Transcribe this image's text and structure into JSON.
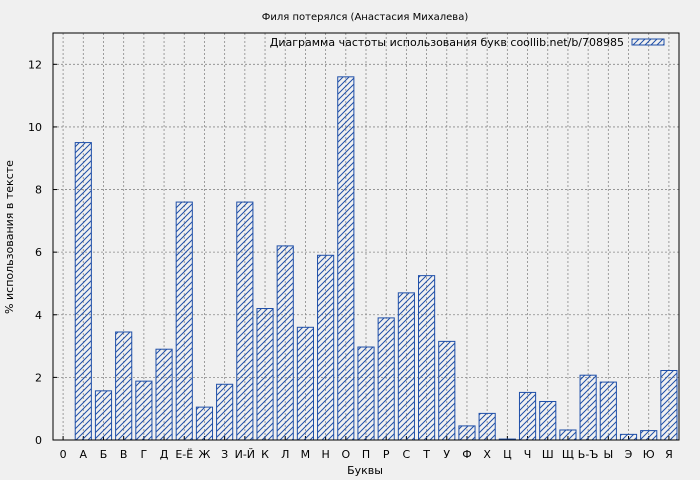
{
  "chart_data": {
    "type": "bar",
    "title": "Филя потерялся (Анастасия Михалева)",
    "xlabel": "Буквы",
    "ylabel": "% использования в тексте",
    "legend": "Диаграмма частоты использования букв coollib.net/b/708985",
    "legend_position": "top-right",
    "grid": true,
    "ylim": [
      0,
      13
    ],
    "yticks": [
      0,
      2,
      4,
      6,
      8,
      10,
      12
    ],
    "categories": [
      "0",
      "А",
      "Б",
      "В",
      "Г",
      "Д",
      "Е-Ё",
      "Ж",
      "З",
      "И-Й",
      "К",
      "Л",
      "М",
      "Н",
      "О",
      "П",
      "Р",
      "С",
      "Т",
      "У",
      "Ф",
      "Х",
      "Ц",
      "Ч",
      "Ш",
      "Щ",
      "Ь-Ъ",
      "Ы",
      "Э",
      "Ю",
      "Я"
    ],
    "values": [
      0,
      9.5,
      1.57,
      3.45,
      1.88,
      2.9,
      7.6,
      1.05,
      1.78,
      7.6,
      4.2,
      6.2,
      3.6,
      5.9,
      11.6,
      2.97,
      3.9,
      4.7,
      5.25,
      3.15,
      0.45,
      0.85,
      0.03,
      1.52,
      1.23,
      0.32,
      2.07,
      1.85,
      0.18,
      0.3,
      2.22
    ],
    "colors": {
      "bar": "#1f4fa8",
      "grid": "#888888",
      "background": "#f0f0f0"
    }
  }
}
